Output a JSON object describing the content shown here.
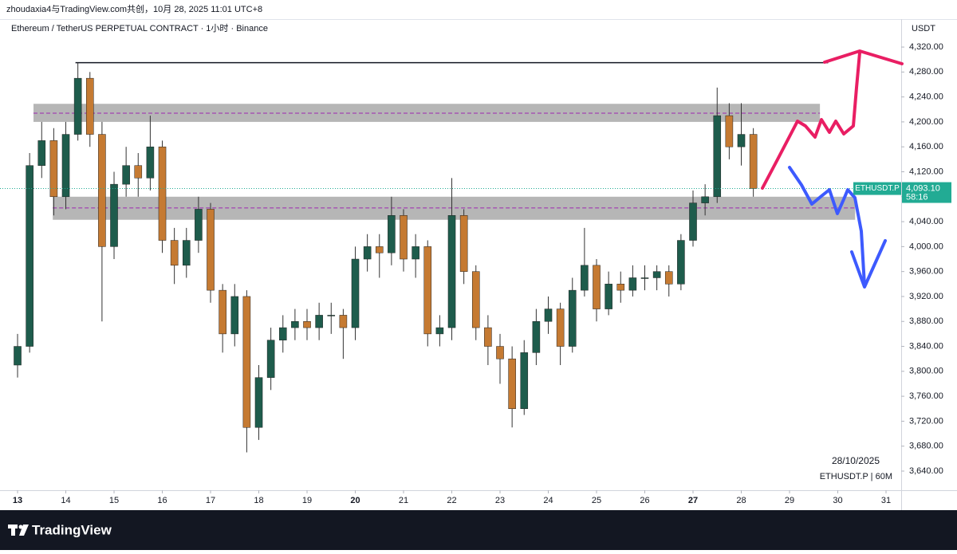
{
  "chart_data": {
    "type": "candlestick",
    "attribution": "zhoudaxia4与TradingView.com共创，10月 28, 2025 11:01 UTC+8",
    "title": "Ethereum / TetherUS PERPETUAL CONTRACT · 1小时 · Binance",
    "currency": "USDT",
    "date_label": "28/10/2025",
    "symbol_label": "ETHUSDT.P | 60M",
    "brand": "TradingView",
    "up_color": "#1e5c4c",
    "down_color": "#c57a32",
    "xlim": [
      12.636,
      31.314
    ],
    "ylim": [
      3609.3,
      4364.8
    ],
    "xticks": [
      13,
      14,
      15,
      16,
      17,
      18,
      19,
      20,
      21,
      22,
      23,
      24,
      25,
      26,
      27,
      28,
      29,
      30,
      31
    ],
    "xticks_bold": [
      13,
      20,
      27
    ],
    "yticks": [
      {
        "value": 4320,
        "label": "4,320.00"
      },
      {
        "value": 4280,
        "label": "4,280.00"
      },
      {
        "value": 4240,
        "label": "4,240.00"
      },
      {
        "value": 4200,
        "label": "4,200.00"
      },
      {
        "value": 4160,
        "label": "4,160.00"
      },
      {
        "value": 4120,
        "label": "4,120.00"
      },
      {
        "value": 4080,
        "label": "4,080.00"
      },
      {
        "value": 4040,
        "label": "4,040.00"
      },
      {
        "value": 4000,
        "label": "4,000.00"
      },
      {
        "value": 3960,
        "label": "3,960.00"
      },
      {
        "value": 3920,
        "label": "3,920.00"
      },
      {
        "value": 3880,
        "label": "3,880.00"
      },
      {
        "value": 3840,
        "label": "3,840.00"
      },
      {
        "value": 3800,
        "label": "3,800.00"
      },
      {
        "value": 3760,
        "label": "3,760.00"
      },
      {
        "value": 3720,
        "label": "3,720.00"
      },
      {
        "value": 3680,
        "label": "3,680.00"
      },
      {
        "value": 3640,
        "label": "3,640.00"
      }
    ],
    "x": [
      13,
      13.25,
      13.5,
      13.75,
      14,
      14.25,
      14.5,
      14.75,
      15,
      15.25,
      15.5,
      15.75,
      16,
      16.25,
      16.5,
      16.75,
      17,
      17.25,
      17.5,
      17.75,
      18,
      18.25,
      18.5,
      18.75,
      19,
      19.25,
      19.5,
      19.75,
      20,
      20.25,
      20.5,
      20.75,
      21,
      21.25,
      21.5,
      21.75,
      22,
      22.25,
      22.5,
      22.75,
      23,
      23.25,
      23.5,
      23.75,
      24,
      24.25,
      24.5,
      24.75,
      25,
      25.25,
      25.5,
      25.75,
      26,
      26.25,
      26.5,
      26.75,
      27,
      27.25,
      27.5,
      27.75,
      28,
      28.25
    ],
    "open": [
      3810,
      3840,
      4130,
      4170,
      4080,
      4180,
      4270,
      4180,
      4000,
      4100,
      4130,
      4110,
      4160,
      4010,
      3970,
      4010,
      4060,
      3930,
      3860,
      3920,
      3710,
      3790,
      3850,
      3870,
      3880,
      3870,
      3890,
      3890,
      3870,
      3980,
      4000,
      3990,
      4050,
      3980,
      4000,
      3860,
      3870,
      4050,
      3960,
      3870,
      3840,
      3820,
      3740,
      3830,
      3880,
      3900,
      3840,
      3930,
      3970,
      3900,
      3940,
      3930,
      3950,
      3950,
      3960,
      3940,
      4010,
      4070,
      4080,
      4210,
      4160,
      4180
    ],
    "high": [
      3860,
      4150,
      4200,
      4190,
      4200,
      4295,
      4280,
      4200,
      4120,
      4160,
      4150,
      4210,
      4170,
      4030,
      4030,
      4080,
      4070,
      3940,
      3940,
      3930,
      3810,
      3870,
      3890,
      3900,
      3900,
      3910,
      3910,
      3900,
      4000,
      4020,
      4020,
      4080,
      4060,
      4020,
      4010,
      3890,
      4110,
      4060,
      3970,
      3890,
      3860,
      3840,
      3850,
      3900,
      3920,
      3910,
      3950,
      4030,
      3980,
      3960,
      3960,
      3970,
      3970,
      3970,
      3970,
      4020,
      4090,
      4100,
      4255,
      4230,
      4230,
      4190
    ],
    "low": [
      3790,
      3830,
      4110,
      4050,
      4060,
      4170,
      4160,
      3880,
      3980,
      4080,
      4080,
      4090,
      3990,
      3940,
      3950,
      3990,
      3910,
      3830,
      3840,
      3670,
      3690,
      3770,
      3830,
      3850,
      3850,
      3850,
      3860,
      3820,
      3850,
      3960,
      3950,
      3970,
      3960,
      3950,
      3840,
      3840,
      3850,
      3940,
      3850,
      3810,
      3780,
      3710,
      3730,
      3810,
      3860,
      3810,
      3830,
      3920,
      3880,
      3890,
      3910,
      3920,
      3930,
      3930,
      3920,
      3930,
      4000,
      4050,
      4070,
      4140,
      4130,
      4080
    ],
    "close": [
      3840,
      4130,
      4170,
      4080,
      4180,
      4270,
      4180,
      4000,
      4100,
      4130,
      4110,
      4160,
      4010,
      3970,
      4010,
      4060,
      3930,
      3860,
      3920,
      3710,
      3790,
      3850,
      3870,
      3880,
      3870,
      3890,
      3890,
      3870,
      3980,
      4000,
      3990,
      4050,
      3980,
      4000,
      3860,
      3870,
      4050,
      3960,
      3870,
      3840,
      3820,
      3740,
      3830,
      3880,
      3900,
      3840,
      3930,
      3970,
      3900,
      3940,
      3930,
      3950,
      3950,
      3960,
      3940,
      4010,
      4070,
      4080,
      4210,
      4160,
      4180,
      4093.1
    ],
    "zones": [
      {
        "top": 4229,
        "bottom": 4200,
        "mid": 4214,
        "from": 13.33,
        "to": 29.63
      },
      {
        "top": 4080,
        "bottom": 4043,
        "mid": 4062,
        "from": 13.73,
        "to": 30.36
      }
    ],
    "resistance": {
      "price": 4295,
      "from": 14.2,
      "to": 29.8
    },
    "last_price": {
      "value": 4093.1,
      "label": "4,093.10",
      "symbol": "ETHUSDT.P",
      "countdown": "58:16",
      "color": "#22ab94"
    }
  }
}
